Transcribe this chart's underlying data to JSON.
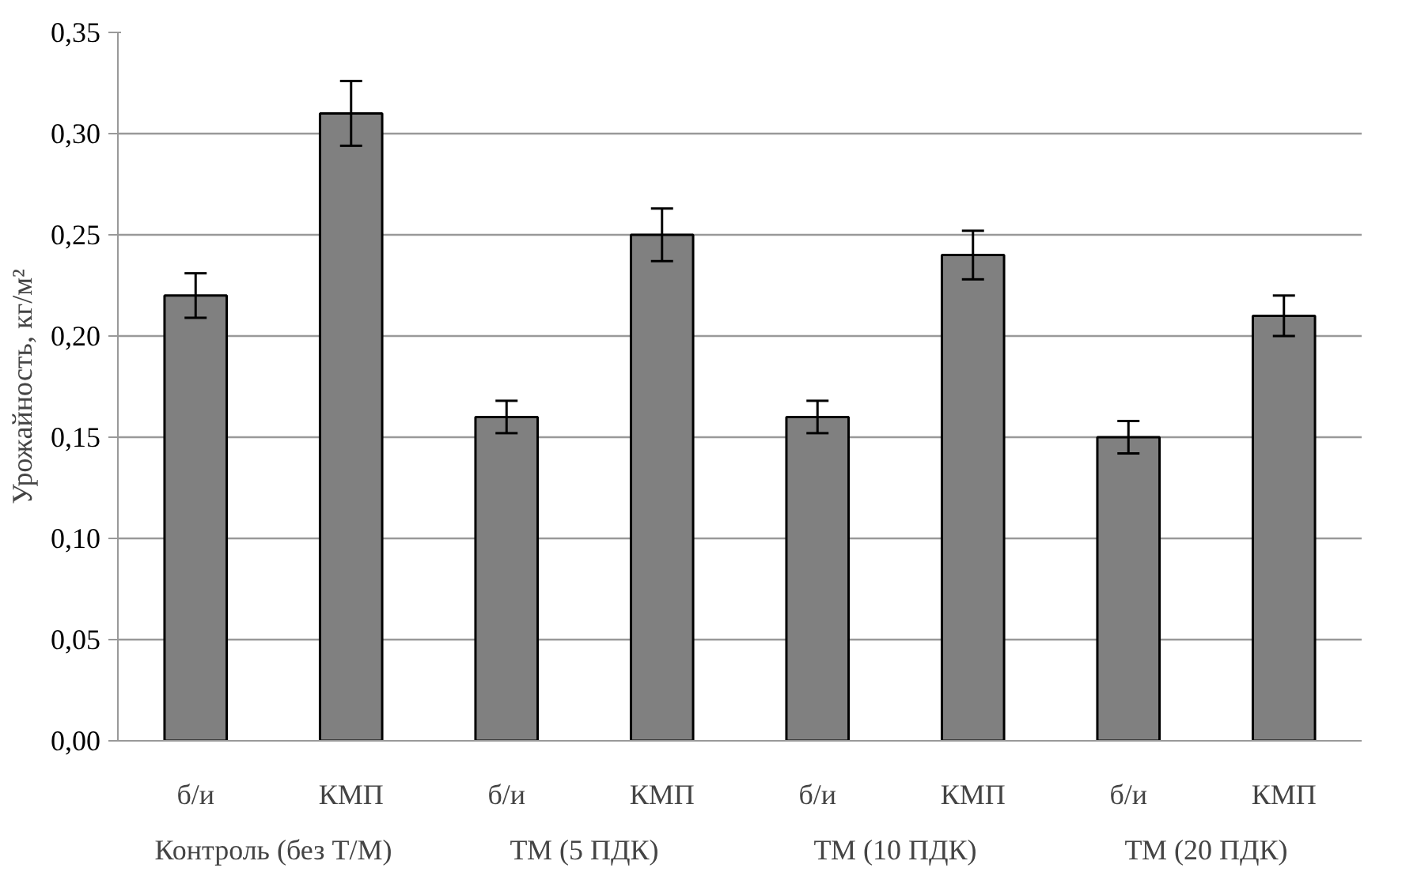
{
  "chart_data": {
    "type": "bar",
    "ylabel": "Урожайность, кг/м²",
    "categories": [
      "б/и",
      "КМП",
      "б/и",
      "КМП",
      "б/и",
      "КМП",
      "б/и",
      "КМП"
    ],
    "values": [
      0.22,
      0.31,
      0.16,
      0.25,
      0.16,
      0.24,
      0.15,
      0.21
    ],
    "errors": [
      0.011,
      0.016,
      0.008,
      0.013,
      0.008,
      0.012,
      0.008,
      0.01
    ],
    "color": "#808080",
    "annotations": [
      "Контроль (без Т/М)",
      "ТМ (5 ПДК)",
      "ТМ (10 ПДК)",
      "ТМ (20 ПДК)"
    ],
    "ylim": [
      0,
      0.35
    ],
    "yticks": [
      {
        "value": 0,
        "label": "0,00"
      },
      {
        "value": 0.05,
        "label": "0,05"
      },
      {
        "value": 0.1,
        "label": "0,10"
      },
      {
        "value": 0.15,
        "label": "0,15"
      },
      {
        "value": 0.2,
        "label": "0,20"
      },
      {
        "value": 0.25,
        "label": "0,25"
      },
      {
        "value": 0.3,
        "label": "0,30"
      },
      {
        "value": 0.35,
        "label": "0,35"
      }
    ],
    "grid": "y"
  }
}
